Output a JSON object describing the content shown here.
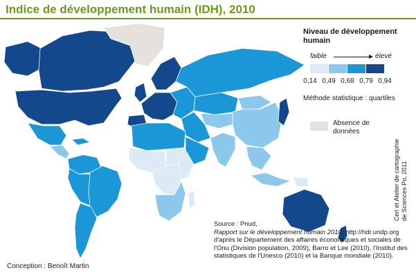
{
  "title": "Indice de développement humain (IDH), 2010",
  "legend": {
    "title": "Niveau de développement humain",
    "low": "faible",
    "high": "élevé",
    "colors": [
      "#dde9f5",
      "#8cc7ec",
      "#1b96d6",
      "#14488d"
    ],
    "breaks": [
      "0,14",
      "0,49",
      "0,68",
      "0,79",
      "0,94"
    ],
    "method": "Méthode statistique : quartiles",
    "nodata_color": "#e5e1dc",
    "nodata_label": "Absence de données"
  },
  "credits": "Ceri et Atelier de cartographie de Sciences Po, 2011",
  "source": {
    "line1": "Source : Pnud,",
    "report_title": "Rapport sur le développement humain 2010",
    "report_suffix": ",",
    "body": "http://hdr.undp.org d'après le Département des affaires économiques et sociales de l'Onu (Division population, 2009), Barro et Lee (2010), l'Institut des statistiques de l'Unesco (2010) et la Banque mondiale (2010)."
  },
  "design": "Conception : Benoît Martin",
  "map": {
    "regions": [
      {
        "name": "canada",
        "class": 4
      },
      {
        "name": "usa",
        "class": 4
      },
      {
        "name": "alaska",
        "class": 4
      },
      {
        "name": "greenland",
        "class": 0
      },
      {
        "name": "mexico",
        "class": 3
      },
      {
        "name": "central-america",
        "class": 2
      },
      {
        "name": "caribbean",
        "class": 3
      },
      {
        "name": "colombia-venezuela",
        "class": 3
      },
      {
        "name": "brazil",
        "class": 3
      },
      {
        "name": "peru-bolivia",
        "class": 3
      },
      {
        "name": "argentina-chile",
        "class": 3
      },
      {
        "name": "scandinavia",
        "class": 4
      },
      {
        "name": "western-europe",
        "class": 4
      },
      {
        "name": "uk-ireland",
        "class": 4
      },
      {
        "name": "iberia",
        "class": 4
      },
      {
        "name": "eastern-europe",
        "class": 3
      },
      {
        "name": "russia",
        "class": 3
      },
      {
        "name": "kazakhstan",
        "class": 3
      },
      {
        "name": "central-asia",
        "class": 2
      },
      {
        "name": "china",
        "class": 2
      },
      {
        "name": "mongolia",
        "class": 2
      },
      {
        "name": "japan-korea",
        "class": 4
      },
      {
        "name": "middle-east",
        "class": 3
      },
      {
        "name": "arabian-peninsula",
        "class": 3
      },
      {
        "name": "north-africa",
        "class": 3
      },
      {
        "name": "west-africa",
        "class": 1
      },
      {
        "name": "central-africa",
        "class": 1
      },
      {
        "name": "east-africa",
        "class": 1
      },
      {
        "name": "southern-africa",
        "class": 2
      },
      {
        "name": "madagascar",
        "class": 1
      },
      {
        "name": "india",
        "class": 2
      },
      {
        "name": "southeast-asia",
        "class": 2
      },
      {
        "name": "indonesia",
        "class": 2
      },
      {
        "name": "papua-new-guinea",
        "class": 1
      },
      {
        "name": "australia",
        "class": 4
      },
      {
        "name": "new-zealand",
        "class": 4
      }
    ]
  }
}
